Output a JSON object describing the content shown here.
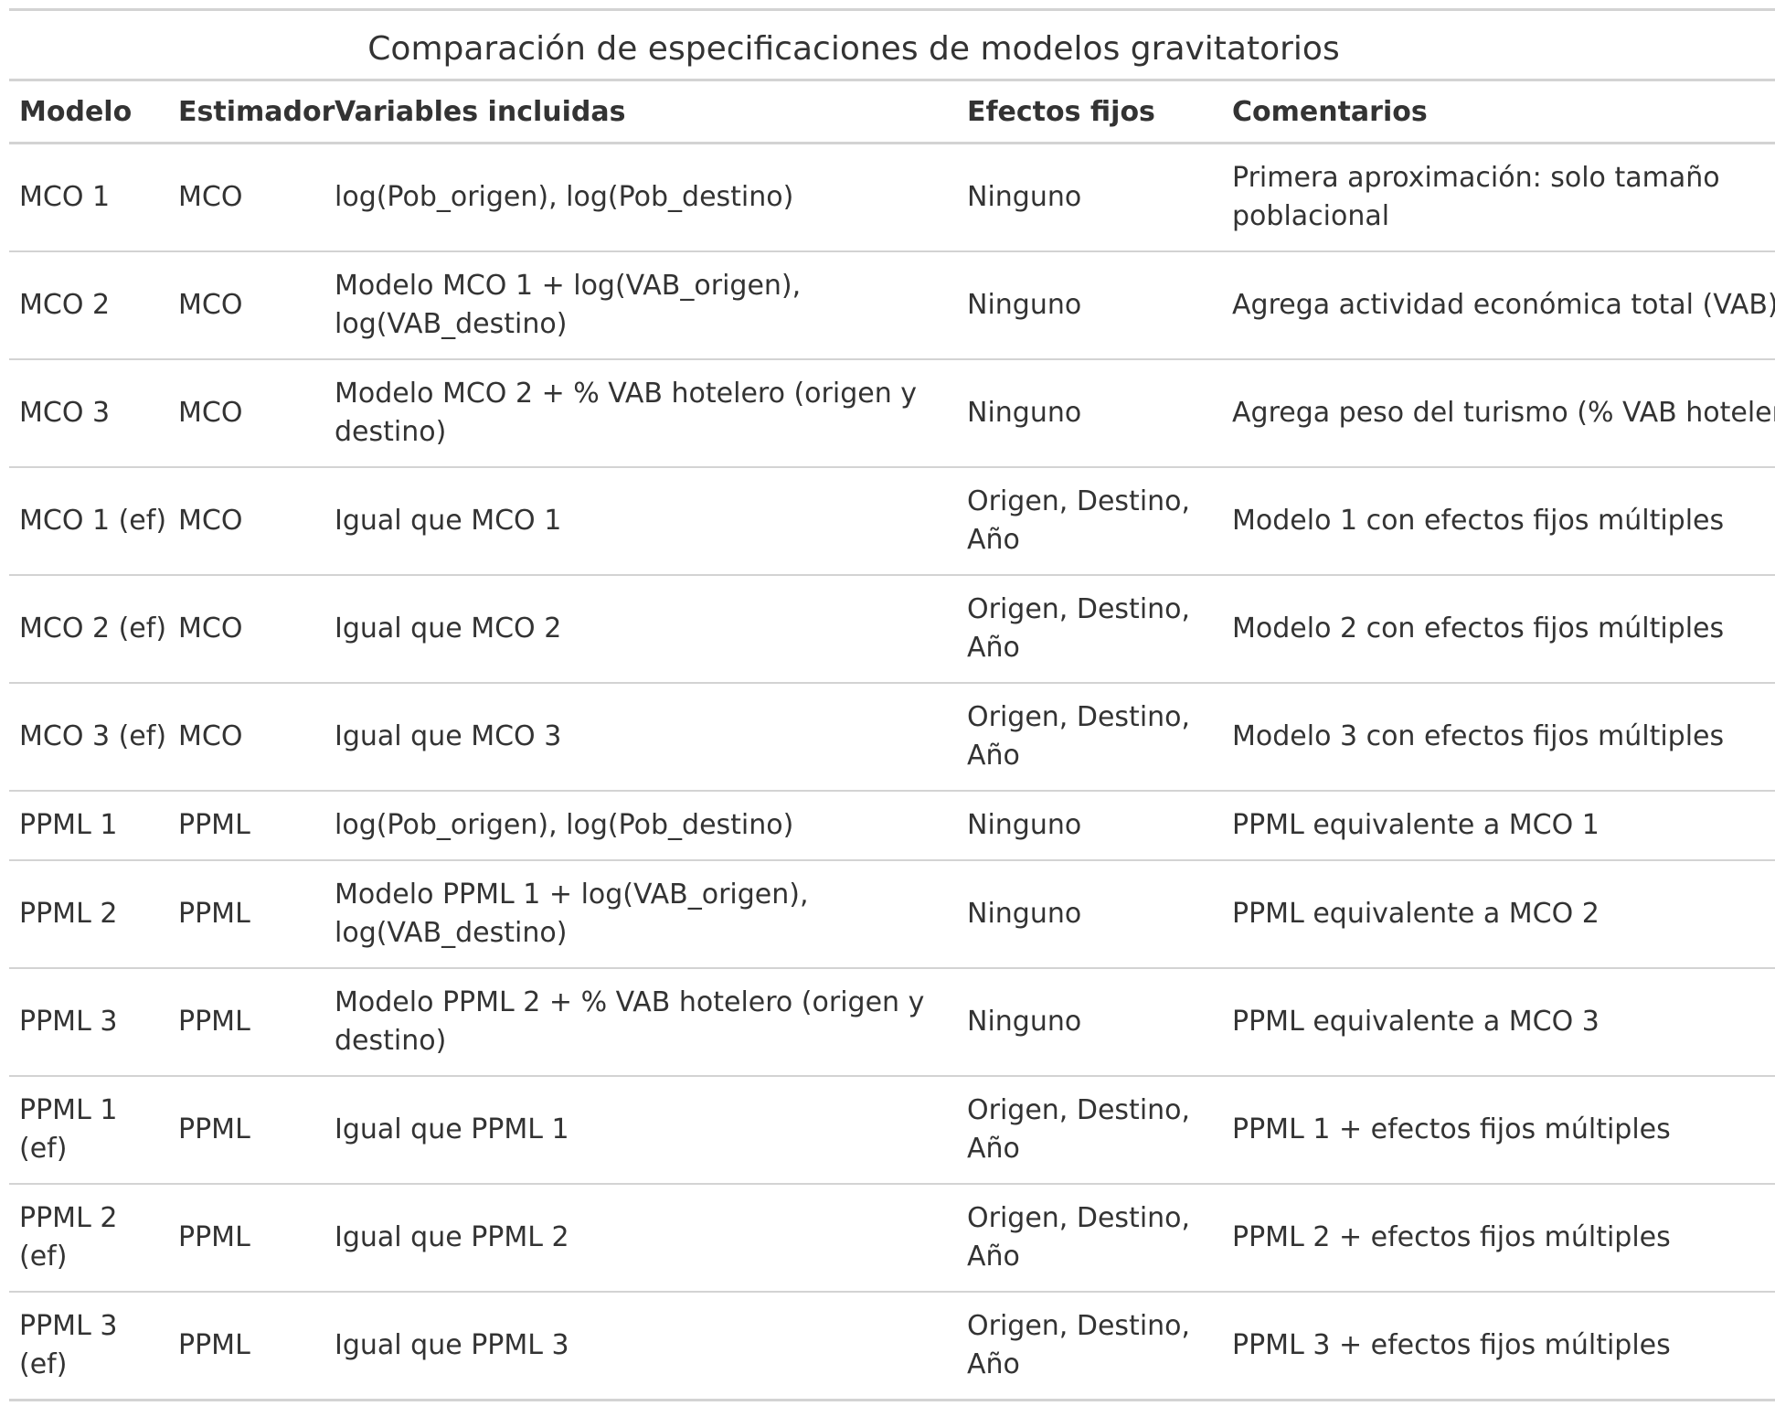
{
  "title": "Comparación de especificaciones de modelos gravitatorios",
  "columns": [
    "Modelo",
    "Estimador",
    "Variables incluidas",
    "Efectos fijos",
    "Comentarios"
  ],
  "rows": [
    {
      "modelo": "MCO 1",
      "estimador": "MCO",
      "variables": "log(Pob_origen), log(Pob_destino)",
      "efectos": "Ninguno",
      "comentarios": "Primera aproximación: solo tamaño poblacional"
    },
    {
      "modelo": "MCO 2",
      "estimador": "MCO",
      "variables": "Modelo MCO 1 + log(VAB_origen), log(VAB_destino)",
      "efectos": "Ninguno",
      "comentarios": "Agrega actividad económica total (VAB)"
    },
    {
      "modelo": "MCO 3",
      "estimador": "MCO",
      "variables": "Modelo MCO 2 + % VAB hotelero (origen y destino)",
      "efectos": "Ninguno",
      "comentarios": "Agrega peso del turismo (% VAB hotelero)"
    },
    {
      "modelo": "MCO 1 (ef)",
      "estimador": "MCO",
      "variables": "Igual que MCO 1",
      "efectos": "Origen, Destino, Año",
      "comentarios": "Modelo 1 con efectos fijos múltiples"
    },
    {
      "modelo": "MCO 2 (ef)",
      "estimador": "MCO",
      "variables": "Igual que MCO 2",
      "efectos": "Origen, Destino, Año",
      "comentarios": "Modelo 2 con efectos fijos múltiples"
    },
    {
      "modelo": "MCO 3 (ef)",
      "estimador": "MCO",
      "variables": "Igual que MCO 3",
      "efectos": "Origen, Destino, Año",
      "comentarios": "Modelo 3 con efectos fijos múltiples"
    },
    {
      "modelo": "PPML 1",
      "estimador": "PPML",
      "variables": "log(Pob_origen), log(Pob_destino)",
      "efectos": "Ninguno",
      "comentarios": "PPML equivalente a MCO 1"
    },
    {
      "modelo": "PPML 2",
      "estimador": "PPML",
      "variables": "Modelo PPML 1 + log(VAB_origen), log(VAB_destino)",
      "efectos": "Ninguno",
      "comentarios": "PPML equivalente a MCO 2"
    },
    {
      "modelo": "PPML 3",
      "estimador": "PPML",
      "variables": "Modelo PPML 2 + % VAB hotelero (origen y destino)",
      "efectos": "Ninguno",
      "comentarios": "PPML equivalente a MCO 3"
    },
    {
      "modelo": "PPML 1 (ef)",
      "estimador": "PPML",
      "variables": "Igual que PPML 1",
      "efectos": "Origen, Destino, Año",
      "comentarios": "PPML 1 + efectos fijos múltiples"
    },
    {
      "modelo": "PPML 2 (ef)",
      "estimador": "PPML",
      "variables": "Igual que PPML 2",
      "efectos": "Origen, Destino, Año",
      "comentarios": "PPML 2 + efectos fijos múltiples"
    },
    {
      "modelo": "PPML 3 (ef)",
      "estimador": "PPML",
      "variables": "Igual que PPML 3",
      "efectos": "Origen, Destino, Año",
      "comentarios": "PPML 3 + efectos fijos múltiples"
    }
  ]
}
